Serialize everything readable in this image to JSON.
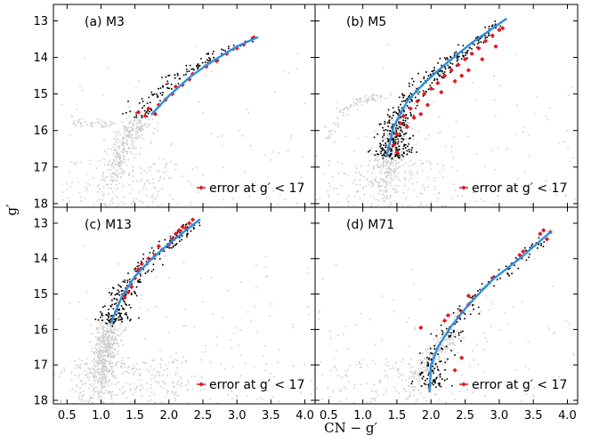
{
  "figure": {
    "xlabel": "CN − g′",
    "ylabel": "g′"
  },
  "colors": {
    "field": "#cccccc",
    "members": "#000000",
    "highlight": "#e8141c",
    "fit": "#2e8fe0",
    "axis": "#000000"
  },
  "chart_data": [
    {
      "type": "scatter",
      "title": "(a) M3",
      "legend": "error at g′ < 17",
      "legend_position": "bottom-right",
      "xlim": [
        0.3,
        4.15
      ],
      "ylim": [
        18.1,
        12.55
      ],
      "xticks": [
        0.5,
        1.0,
        1.5,
        2.0,
        2.5,
        3.0,
        3.5,
        4.0
      ],
      "yticks": [
        13,
        14,
        15,
        16,
        17,
        18
      ],
      "xticklabels": [
        "0.5",
        "1.0",
        "1.5",
        "2.0",
        "2.5",
        "3.0",
        "3.5",
        "4.0"
      ],
      "yticklabels": [
        "13",
        "14",
        "15",
        "16",
        "17",
        "18"
      ],
      "fit_curve": [
        [
          1.75,
          15.55
        ],
        [
          2.0,
          15.05
        ],
        [
          2.3,
          14.55
        ],
        [
          2.6,
          14.15
        ],
        [
          3.0,
          13.7
        ],
        [
          3.3,
          13.45
        ]
      ],
      "rgb_track": [
        [
          1.55,
          15.6
        ],
        [
          1.8,
          15.1
        ],
        [
          2.1,
          14.6
        ],
        [
          2.4,
          14.2
        ],
        [
          2.8,
          13.85
        ],
        [
          3.3,
          13.45
        ]
      ],
      "hb_track": [
        [
          0.55,
          15.75
        ],
        [
          0.85,
          15.8
        ],
        [
          1.05,
          15.85
        ],
        [
          1.25,
          15.85
        ]
      ],
      "ms_track": [
        [
          1.15,
          18.1
        ],
        [
          1.2,
          17.4
        ],
        [
          1.25,
          16.9
        ],
        [
          1.35,
          16.4
        ],
        [
          1.5,
          15.9
        ],
        [
          1.75,
          15.4
        ],
        [
          2.1,
          14.8
        ],
        [
          2.6,
          14.1
        ],
        [
          3.2,
          13.5
        ]
      ],
      "highlighted": [
        [
          1.55,
          15.5
        ],
        [
          1.65,
          15.6
        ],
        [
          1.7,
          15.4
        ],
        [
          1.8,
          15.55
        ],
        [
          1.85,
          15.3
        ],
        [
          1.95,
          15.15
        ],
        [
          2.05,
          15.0
        ],
        [
          2.1,
          14.8
        ],
        [
          2.2,
          14.75
        ],
        [
          2.3,
          14.6
        ],
        [
          2.35,
          14.45
        ],
        [
          2.55,
          14.25
        ],
        [
          2.7,
          14.1
        ],
        [
          2.85,
          13.9
        ],
        [
          3.0,
          13.75
        ],
        [
          3.1,
          13.65
        ],
        [
          3.25,
          13.45
        ]
      ],
      "counts": {
        "field": 550,
        "members": 120,
        "hb": 50
      }
    },
    {
      "type": "scatter",
      "title": "(b) M5",
      "legend": "error at g′ < 17",
      "legend_position": "bottom-right",
      "xlim": [
        0.3,
        4.15
      ],
      "ylim": [
        18.1,
        12.55
      ],
      "xticks": [
        0.5,
        1.0,
        1.5,
        2.0,
        2.5,
        3.0,
        3.5,
        4.0
      ],
      "yticks": [
        13,
        14,
        15,
        16,
        17,
        18
      ],
      "xticklabels": [
        "0.5",
        "1.0",
        "1.5",
        "2.0",
        "2.5",
        "3.0",
        "3.5",
        "4.0"
      ],
      "yticklabels": [
        "13",
        "14",
        "15",
        "16",
        "17",
        "18"
      ],
      "fit_curve": [
        [
          1.35,
          16.7
        ],
        [
          1.45,
          15.9
        ],
        [
          1.65,
          15.2
        ],
        [
          1.9,
          14.7
        ],
        [
          2.2,
          14.2
        ],
        [
          2.6,
          13.6
        ],
        [
          3.1,
          12.95
        ]
      ],
      "rgb_track": [
        [
          1.4,
          16.7
        ],
        [
          1.45,
          15.9
        ],
        [
          1.65,
          15.2
        ],
        [
          1.95,
          14.65
        ],
        [
          2.25,
          14.15
        ],
        [
          2.65,
          13.6
        ],
        [
          3.05,
          13.0
        ]
      ],
      "hb_track": [
        [
          0.5,
          16.2
        ],
        [
          0.7,
          15.5
        ],
        [
          0.9,
          15.2
        ],
        [
          1.1,
          15.1
        ],
        [
          1.3,
          15.1
        ]
      ],
      "ms_track": [
        [
          1.3,
          18.1
        ],
        [
          1.32,
          17.4
        ],
        [
          1.38,
          16.9
        ],
        [
          1.45,
          16.3
        ],
        [
          1.6,
          15.6
        ],
        [
          1.9,
          14.9
        ],
        [
          2.3,
          14.2
        ],
        [
          2.8,
          13.5
        ]
      ],
      "highlighted": [
        [
          1.45,
          16.4
        ],
        [
          1.5,
          16.1
        ],
        [
          1.55,
          15.8
        ],
        [
          1.6,
          15.6
        ],
        [
          1.7,
          15.4
        ],
        [
          1.8,
          15.2
        ],
        [
          1.9,
          15.0
        ],
        [
          2.0,
          14.85
        ],
        [
          2.1,
          14.7
        ],
        [
          2.2,
          14.5
        ],
        [
          2.3,
          14.35
        ],
        [
          2.4,
          14.2
        ],
        [
          2.5,
          14.05
        ],
        [
          2.6,
          13.9
        ],
        [
          2.7,
          13.75
        ],
        [
          2.8,
          13.55
        ],
        [
          2.9,
          13.4
        ],
        [
          3.0,
          13.25
        ],
        [
          1.65,
          15.9
        ],
        [
          1.75,
          15.65
        ],
        [
          1.95,
          15.3
        ],
        [
          2.15,
          14.95
        ],
        [
          2.35,
          14.65
        ],
        [
          2.55,
          14.35
        ],
        [
          2.75,
          14.05
        ],
        [
          2.95,
          13.7
        ],
        [
          3.05,
          13.2
        ],
        [
          1.5,
          16.6
        ],
        [
          1.85,
          15.55
        ],
        [
          2.45,
          14.5
        ]
      ],
      "counts": {
        "field": 650,
        "members": 420,
        "hb": 90
      }
    },
    {
      "type": "scatter",
      "title": "(c) M13",
      "legend": "error at g′ < 17",
      "legend_position": "bottom-right",
      "xlim": [
        0.3,
        4.15
      ],
      "ylim": [
        18.1,
        12.55
      ],
      "xticks": [
        0.5,
        1.0,
        1.5,
        2.0,
        2.5,
        3.0,
        3.5,
        4.0
      ],
      "yticks": [
        13,
        14,
        15,
        16,
        17,
        18
      ],
      "xticklabels": [
        "0.5",
        "1.0",
        "1.5",
        "2.0",
        "2.5",
        "3.0",
        "3.5",
        "4.0"
      ],
      "yticklabels": [
        "13",
        "14",
        "15",
        "16",
        "17",
        "18"
      ],
      "fit_curve": [
        [
          1.15,
          15.8
        ],
        [
          1.3,
          15.1
        ],
        [
          1.5,
          14.5
        ],
        [
          1.75,
          14.0
        ],
        [
          2.05,
          13.5
        ],
        [
          2.45,
          12.9
        ]
      ],
      "rgb_track": [
        [
          1.15,
          15.8
        ],
        [
          1.3,
          15.1
        ],
        [
          1.5,
          14.5
        ],
        [
          1.8,
          13.95
        ],
        [
          2.1,
          13.45
        ],
        [
          2.4,
          12.95
        ]
      ],
      "hb_track": [
        [
          1.0,
          16.0
        ],
        [
          1.05,
          15.7
        ]
      ],
      "ms_track": [
        [
          0.9,
          18.1
        ],
        [
          1.0,
          17.4
        ],
        [
          1.05,
          16.8
        ],
        [
          1.1,
          16.2
        ],
        [
          1.3,
          15.2
        ],
        [
          1.7,
          14.2
        ],
        [
          2.2,
          13.3
        ]
      ],
      "highlighted": [
        [
          1.35,
          15.1
        ],
        [
          1.45,
          14.8
        ],
        [
          1.5,
          14.55
        ],
        [
          1.55,
          14.3
        ],
        [
          1.6,
          14.15
        ],
        [
          1.7,
          14.0
        ],
        [
          1.8,
          13.9
        ],
        [
          1.9,
          13.75
        ],
        [
          2.0,
          13.6
        ],
        [
          2.05,
          13.45
        ],
        [
          2.1,
          13.3
        ],
        [
          2.15,
          13.2
        ],
        [
          2.2,
          13.1
        ],
        [
          2.3,
          13.0
        ],
        [
          2.35,
          12.9
        ],
        [
          1.4,
          14.95
        ],
        [
          1.85,
          13.65
        ],
        [
          2.25,
          13.15
        ]
      ],
      "counts": {
        "field": 900,
        "members": 260,
        "hb": 10
      }
    },
    {
      "type": "scatter",
      "title": "(d) M71",
      "legend": "error at g′ < 17",
      "legend_position": "bottom-right",
      "xlim": [
        0.3,
        4.15
      ],
      "ylim": [
        18.1,
        12.55
      ],
      "xticks": [
        0.5,
        1.0,
        1.5,
        2.0,
        2.5,
        3.0,
        3.5,
        4.0
      ],
      "yticks": [
        13,
        14,
        15,
        16,
        17,
        18
      ],
      "xticklabels": [
        "0.5",
        "1.0",
        "1.5",
        "2.0",
        "2.5",
        "3.0",
        "3.5",
        "4.0"
      ],
      "yticklabels": [
        "13",
        "14",
        "15",
        "16",
        "17",
        "18"
      ],
      "fit_curve": [
        [
          1.98,
          17.75
        ],
        [
          2.0,
          17.0
        ],
        [
          2.1,
          16.5
        ],
        [
          2.3,
          15.9
        ],
        [
          2.55,
          15.3
        ],
        [
          2.9,
          14.6
        ],
        [
          3.3,
          14.0
        ],
        [
          3.75,
          13.25
        ]
      ],
      "rgb_track": [
        [
          2.0,
          17.6
        ],
        [
          2.05,
          16.9
        ],
        [
          2.15,
          16.3
        ],
        [
          2.35,
          15.8
        ],
        [
          2.6,
          15.25
        ],
        [
          2.95,
          14.55
        ],
        [
          3.35,
          13.95
        ],
        [
          3.7,
          13.3
        ]
      ],
      "hb_track": [
        [
          2.2,
          15.6
        ],
        [
          2.45,
          15.55
        ],
        [
          2.6,
          15.55
        ]
      ],
      "ms_track": [
        [
          1.6,
          18.1
        ],
        [
          1.8,
          17.4
        ],
        [
          2.0,
          16.9
        ],
        [
          2.2,
          16.3
        ],
        [
          2.6,
          15.5
        ],
        [
          3.0,
          14.7
        ],
        [
          3.5,
          13.8
        ]
      ],
      "highlighted": [
        [
          1.85,
          15.95
        ],
        [
          2.2,
          15.75
        ],
        [
          2.25,
          15.6
        ],
        [
          2.4,
          15.65
        ],
        [
          2.45,
          15.5
        ],
        [
          2.55,
          15.3
        ],
        [
          2.55,
          15.05
        ],
        [
          2.65,
          15.05
        ],
        [
          2.45,
          16.8
        ],
        [
          2.35,
          17.15
        ],
        [
          3.3,
          13.9
        ],
        [
          3.35,
          13.8
        ],
        [
          3.6,
          13.3
        ],
        [
          3.65,
          13.2
        ],
        [
          3.75,
          13.25
        ],
        [
          3.7,
          13.45
        ],
        [
          2.9,
          14.55
        ]
      ],
      "counts": {
        "field": 480,
        "members": 190,
        "hb": 15
      }
    }
  ]
}
